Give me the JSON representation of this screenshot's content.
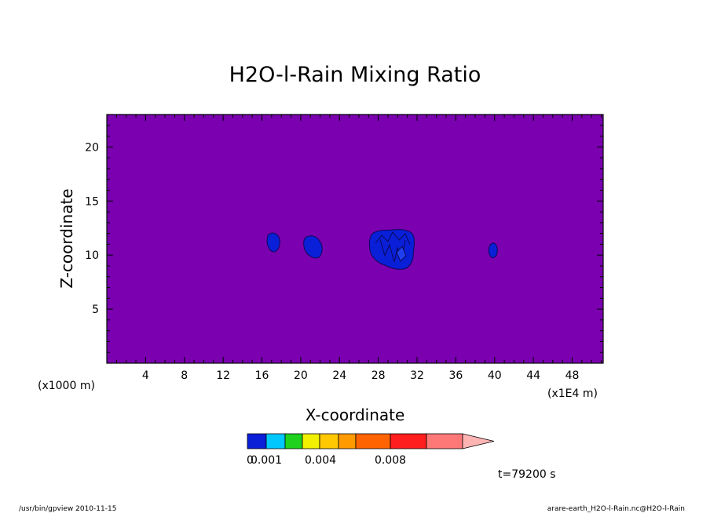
{
  "chart_data": {
    "type": "heatmap",
    "title": "H2O-l-Rain Mixing Ratio",
    "xlabel": "X-coordinate",
    "ylabel": "Z-coordinate",
    "x_unit_left": "(x1000 m)",
    "x_unit_right": "(x1E4 m)",
    "xlim": [
      0,
      51.2
    ],
    "ylim": [
      0,
      23
    ],
    "x_ticks": [
      4,
      8,
      12,
      16,
      20,
      24,
      28,
      32,
      36,
      40,
      44,
      48
    ],
    "y_ticks": [
      5,
      10,
      15,
      20
    ],
    "background_color": "#7a00b0",
    "features": [
      {
        "x": 17.2,
        "z": 11.1,
        "level": "0.001",
        "color": "#0a1fd8"
      },
      {
        "x": 21.2,
        "z": 10.6,
        "level": "0.001",
        "color": "#0a1fd8"
      },
      {
        "x": 29.8,
        "z": 10.6,
        "level": "0.001",
        "color": "#0a1fd8"
      },
      {
        "x": 39.8,
        "z": 10.3,
        "level": "0.001",
        "color": "#0a1fd8"
      }
    ],
    "colorbar": {
      "colors": [
        "#0a1fd8",
        "#00c8ff",
        "#1ed21e",
        "#f0f000",
        "#ffc800",
        "#ff9b00",
        "#ff6400",
        "#ff1e1e",
        "#ff7878",
        "#ffb4b4"
      ],
      "labels": [
        "0.001",
        "0.004",
        "0.008"
      ],
      "extra_label": "0"
    },
    "time_label": "t=79200 s"
  },
  "footer": {
    "left": "/usr/bin/gpview   2010-11-15",
    "right": "arare-earth_H2O-l-Rain.nc@H2O-l-Rain"
  }
}
